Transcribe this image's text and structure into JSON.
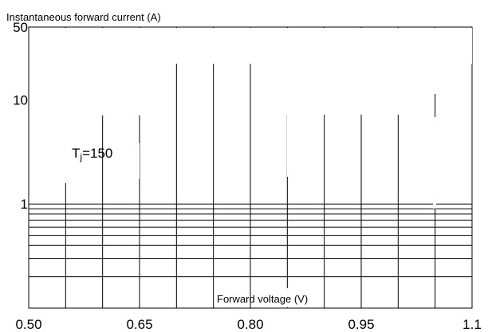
{
  "chart_data": {
    "type": "line",
    "title": "",
    "ylabel": "Instantaneous forward current (A)",
    "xlabel": "Forward voltage (V)",
    "x_scale": "linear",
    "y_scale": "log",
    "xlim": [
      0.5,
      1.1
    ],
    "ylim": [
      0.1,
      50
    ],
    "x_tick_labels": [
      "0.50",
      "0.65",
      "0.80",
      "0.95",
      "1.1"
    ],
    "y_tick_labels": [
      "1",
      "10",
      "50"
    ],
    "grid": true,
    "annotation": {
      "main": "T",
      "sub": "j",
      "rest": "=150"
    },
    "series": []
  }
}
